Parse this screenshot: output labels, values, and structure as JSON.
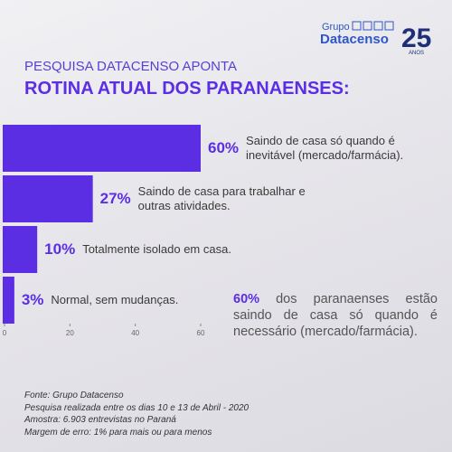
{
  "logo": {
    "group": "Grupo",
    "brand": "Datacenso",
    "years": "25",
    "years_label": "ANOS"
  },
  "chart_data": {
    "type": "bar",
    "orientation": "horizontal",
    "subtitle": "PESQUISA DATACENSO APONTA",
    "title": "ROTINA ATUAL DOS PARANAENSES:",
    "categories": [
      "Saindo de casa só quando é inevitável (mercado/farmácia).",
      "Saindo de casa para trabalhar e outras atividades.",
      "Totalmente isolado em casa.",
      "Normal, sem mudanças."
    ],
    "values": [
      60,
      27,
      10,
      3
    ],
    "value_labels": [
      "60%",
      "27%",
      "10%",
      "3%"
    ],
    "color": "#5b2de3",
    "xlim": [
      0,
      60
    ],
    "xticks": [
      0,
      20,
      40,
      60
    ],
    "annotation": {
      "highlight": "60%",
      "text": " dos paranaenses estão saindo de casa só quando é necessário (mercado/farmácia)."
    },
    "notes": [
      "Fonte: Grupo Datacenso",
      "Pesquisa realizada entre os dias 10 e 13 de Abril - 2020",
      "Amostra: 6.903 entrevistas no Paraná",
      "Margem de erro: 1% para mais ou para menos"
    ]
  }
}
